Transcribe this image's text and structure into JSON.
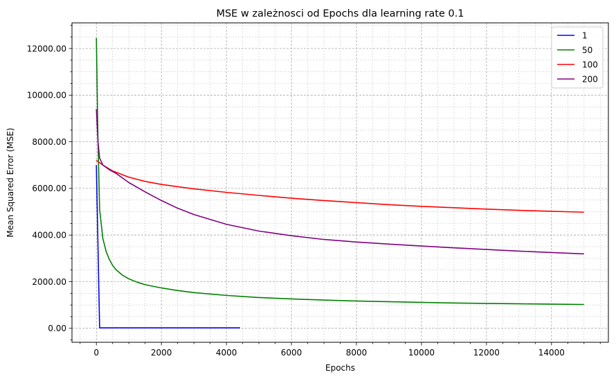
{
  "chart_data": {
    "type": "line",
    "title": "MSE w zależnosci od Epochs dla learning rate 0.1",
    "xlabel": "Epochs",
    "ylabel": "Mean Squared Error (MSE)",
    "xlim": [
      -750,
      15750
    ],
    "ylim": [
      -600,
      13100
    ],
    "xticks": [
      0,
      2000,
      4000,
      6000,
      8000,
      10000,
      12000,
      14000
    ],
    "xtick_labels": [
      "0",
      "2000",
      "4000",
      "6000",
      "8000",
      "10000",
      "12000",
      "14000"
    ],
    "yticks": [
      0,
      2000,
      4000,
      6000,
      8000,
      10000,
      12000
    ],
    "ytick_labels": [
      "0.00",
      "2000.00",
      "4000.00",
      "6000.00",
      "8000.00",
      "10000.00",
      "12000.00"
    ],
    "grid": true,
    "minor_grid": true,
    "legend_position": "top-right",
    "series": [
      {
        "name": "1",
        "color": "#0000ff",
        "x": [
          0,
          100,
          500,
          1000,
          2000,
          3000,
          4000,
          4420
        ],
        "y": [
          7000,
          20,
          20,
          20,
          20,
          20,
          20,
          20
        ]
      },
      {
        "name": "50",
        "color": "#008000",
        "x": [
          0,
          50,
          100,
          200,
          300,
          400,
          500,
          600,
          800,
          1000,
          1250,
          1500,
          2000,
          2500,
          3000,
          4000,
          5000,
          6000,
          7000,
          8000,
          9000,
          10000,
          11000,
          12000,
          13000,
          14000,
          15000
        ],
        "y": [
          12450,
          8000,
          5100,
          3850,
          3300,
          2950,
          2700,
          2520,
          2280,
          2120,
          1980,
          1870,
          1730,
          1620,
          1530,
          1410,
          1320,
          1260,
          1210,
          1170,
          1140,
          1110,
          1085,
          1065,
          1050,
          1035,
          1020
        ]
      },
      {
        "name": "100",
        "color": "#ff0000",
        "x": [
          0,
          200,
          500,
          1000,
          1500,
          2000,
          3000,
          4000,
          5000,
          6000,
          7000,
          8000,
          9000,
          10000,
          11000,
          12000,
          13000,
          14000,
          15000
        ],
        "y": [
          7200,
          7000,
          6750,
          6480,
          6300,
          6170,
          5980,
          5830,
          5700,
          5580,
          5480,
          5390,
          5300,
          5230,
          5170,
          5110,
          5060,
          5020,
          4980
        ]
      },
      {
        "name": "200",
        "color": "#800080",
        "x": [
          0,
          50,
          100,
          200,
          400,
          600,
          800,
          1000,
          1500,
          2000,
          2500,
          3000,
          4000,
          5000,
          6000,
          7000,
          8000,
          9000,
          10000,
          11000,
          12000,
          13000,
          14000,
          15000
        ],
        "y": [
          9400,
          8000,
          7300,
          7000,
          6800,
          6650,
          6450,
          6250,
          5850,
          5480,
          5150,
          4880,
          4460,
          4170,
          3970,
          3810,
          3700,
          3610,
          3530,
          3450,
          3380,
          3310,
          3250,
          3190
        ]
      }
    ]
  }
}
